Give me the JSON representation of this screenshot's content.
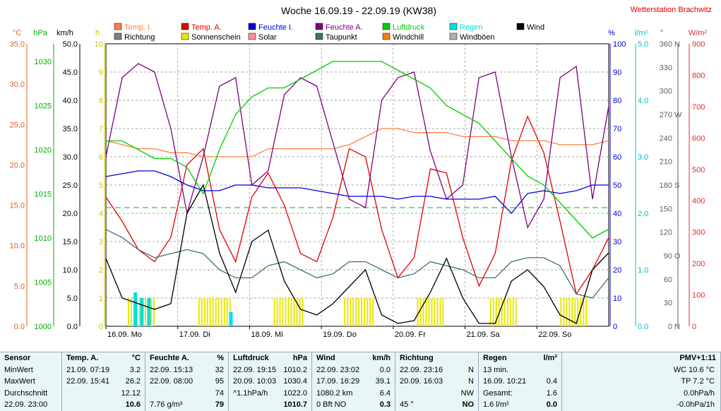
{
  "chart_data": {
    "type": "line",
    "title": "Woche 16.09.19 - 22.09.19 (KW38)",
    "station": "Wetterstation Brachwitz",
    "x_labels": [
      "16.09. Mo",
      "17.09. Di",
      "18.09. Mi",
      "19.09. Do",
      "20.09. Fr",
      "21.09. Sa",
      "22.09. So"
    ],
    "axes": {
      "temp": {
        "label": "°C",
        "ticks": [
          "0.0",
          "5.0",
          "10.0",
          "15.0",
          "20.0",
          "25.0",
          "30.0",
          "35.0"
        ],
        "color": "#e06020"
      },
      "pressure": {
        "label": "hPa",
        "ticks": [
          "1000",
          "1005",
          "1010",
          "1015",
          "1020",
          "1025",
          "1030"
        ],
        "color": "#00b000"
      },
      "wind": {
        "label": "km/h",
        "ticks": [
          "0.0",
          "5.0",
          "10.0",
          "15.0",
          "20.0",
          "25.0",
          "30.0",
          "35.0",
          "40.0",
          "45.0",
          "50.0"
        ],
        "color": "#000000"
      },
      "sun": {
        "label": "h",
        "ticks": [
          "0",
          "1",
          "2",
          "3",
          "4",
          "5",
          "6",
          "7",
          "8",
          "9",
          "10"
        ],
        "color": "#c8c800"
      },
      "humidity": {
        "label": "%",
        "ticks": [
          "0",
          "10",
          "20",
          "30",
          "40",
          "50",
          "60",
          "70",
          "80",
          "90",
          "100"
        ],
        "color": "#0000cc"
      },
      "rain": {
        "label": "l/m²",
        "ticks": [
          "0.0",
          "1.0",
          "2.0",
          "3.0",
          "4.0",
          "5.0"
        ],
        "color": "#00c0c0"
      },
      "direction": {
        "label": "°",
        "ticks": [
          "0",
          "30",
          "60",
          "90",
          "120",
          "150",
          "180",
          "210",
          "240",
          "270",
          "300",
          "330",
          "360"
        ],
        "dir_labels": [
          "N",
          "",
          "",
          "O",
          "",
          "",
          "S",
          "",
          "",
          "W",
          "",
          "",
          "N"
        ],
        "color": "#606060"
      },
      "solar": {
        "label": "W/m²",
        "ticks": [
          "0",
          "100",
          "200",
          "300",
          "400",
          "500",
          "600",
          "700",
          "800",
          "900"
        ],
        "color": "#e03030"
      }
    },
    "legend": [
      {
        "name": "Temp. I.",
        "color": "#ff8040"
      },
      {
        "name": "Temp. A.",
        "color": "#e00000"
      },
      {
        "name": "Feuchte I.",
        "color": "#0000e0"
      },
      {
        "name": "Feuchte A.",
        "color": "#800080"
      },
      {
        "name": "Luftdruck",
        "color": "#00d000"
      },
      {
        "name": "Regen",
        "color": "#00e0e0"
      },
      {
        "name": "Wind",
        "color": "#000000"
      },
      {
        "name": "Richtung",
        "color": "#808080"
      },
      {
        "name": "Sonnenschein",
        "color": "#e8e800"
      },
      {
        "name": "Solar",
        "color": "#ff9090"
      },
      {
        "name": "Taupunkt",
        "color": "#407070"
      },
      {
        "name": "Windchill",
        "color": "#ff8000"
      },
      {
        "name": "Windböen",
        "color": "#b0b0b0"
      }
    ],
    "series": [
      {
        "name": "Temp. A.",
        "axis": "temp",
        "values": [
          16.0,
          13.0,
          9.5,
          8.0,
          11.0,
          20.0,
          22.0,
          12.0,
          8.0,
          16.0,
          19.0,
          15.0,
          9.0,
          8.0,
          13.5,
          22.0,
          21.0,
          12.0,
          6.0,
          8.5,
          19.5,
          19.0,
          11.0,
          5.0,
          9.0,
          20.5,
          26.0,
          21.5,
          13.0,
          4.0,
          7.0,
          11.0
        ]
      },
      {
        "name": "Temp. I.",
        "axis": "temp",
        "values": [
          23.0,
          22.5,
          22.0,
          22.0,
          21.5,
          21.5,
          21.0,
          21.0,
          21.0,
          21.0,
          22.0,
          22.0,
          22.0,
          22.0,
          22.0,
          22.5,
          23.5,
          24.5,
          24.5,
          24.0,
          24.0,
          24.0,
          23.5,
          23.5,
          23.5,
          23.0,
          23.0,
          23.0,
          22.5,
          22.5,
          22.5,
          23.0
        ]
      },
      {
        "name": "Feuchte A.",
        "axis": "humidity",
        "values": [
          60,
          88,
          93,
          90,
          70,
          40,
          60,
          85,
          88,
          50,
          55,
          82,
          88,
          85,
          65,
          45,
          42,
          80,
          88,
          90,
          62,
          45,
          50,
          88,
          90,
          60,
          35,
          45,
          88,
          92,
          45,
          78
        ]
      },
      {
        "name": "Feuchte I.",
        "axis": "humidity",
        "values": [
          53,
          54,
          55,
          55,
          53,
          50,
          48,
          48,
          50,
          50,
          49,
          49,
          49,
          48,
          47,
          46,
          46,
          46,
          45,
          46,
          46,
          45,
          45,
          45,
          46,
          40,
          47,
          48,
          47,
          48,
          50,
          50
        ]
      },
      {
        "name": "Luftdruck",
        "axis": "pressure",
        "values": [
          1021,
          1021,
          1020,
          1019,
          1019,
          1018,
          1015,
          1020,
          1024,
          1026,
          1027,
          1027,
          1028,
          1029,
          1030,
          1030,
          1030,
          1030,
          1029,
          1028,
          1027,
          1025,
          1024,
          1023,
          1021,
          1019,
          1017,
          1016,
          1014,
          1012,
          1010,
          1011
        ]
      },
      {
        "name": "Taupunkt",
        "axis": "temp",
        "values": [
          12.0,
          11.0,
          9.5,
          8.5,
          9.0,
          9.5,
          9.0,
          7.0,
          6.0,
          6.0,
          7.5,
          8.0,
          7.0,
          6.0,
          6.5,
          8.0,
          8.0,
          7.0,
          6.0,
          6.5,
          8.0,
          7.5,
          7.0,
          6.0,
          6.0,
          8.0,
          8.5,
          8.5,
          7.5,
          4.0,
          3.5,
          6.0
        ]
      },
      {
        "name": "Wind",
        "axis": "wind",
        "values": [
          12.0,
          5.0,
          4.0,
          3.0,
          4.0,
          20.0,
          25.0,
          13.0,
          6.0,
          15.0,
          17.0,
          8.0,
          3.0,
          2.0,
          4.0,
          7.0,
          10.0,
          2.0,
          0.5,
          1.0,
          6.0,
          12.0,
          5.0,
          0.5,
          0.5,
          8.0,
          10.0,
          7.0,
          2.0,
          0.5,
          10.0,
          13.0
        ]
      }
    ],
    "sunshine": {
      "axis": "sun",
      "blocks": [
        [
          0.045,
          0.1
        ],
        [
          0.185,
          0.25
        ],
        [
          0.335,
          0.395
        ],
        [
          0.475,
          0.535
        ],
        [
          0.62,
          0.675
        ],
        [
          0.765,
          0.82
        ],
        [
          0.905,
          0.96
        ]
      ],
      "value": 1
    },
    "rain": {
      "axis": "rain",
      "bars": [
        [
          0.055,
          0.6
        ],
        [
          0.068,
          0.5
        ],
        [
          0.082,
          0.5
        ],
        [
          0.245,
          0.25
        ]
      ]
    }
  },
  "table": {
    "columns": [
      {
        "title": "Sensor",
        "unit": "",
        "rows": [
          "MinWert",
          "MaxWert",
          "Durchschnitt",
          "22.09. 23:00"
        ],
        "vals": [
          "",
          "",
          "",
          ""
        ]
      },
      {
        "title": "Temp. A.",
        "unit": "°C",
        "rows": [
          "21.09.  07:19",
          "22.09.  15:41",
          "",
          ""
        ],
        "vals": [
          "3.2",
          "26.2",
          "12.12",
          "10.6"
        ]
      },
      {
        "title": "Feuchte A.",
        "unit": "%",
        "rows": [
          "22.09.  15:13",
          "22.09.  08:00",
          "",
          "7.76 g/m³"
        ],
        "vals": [
          "32",
          "95",
          "74",
          "79"
        ]
      },
      {
        "title": "Luftdruck",
        "unit": "hPa",
        "rows": [
          "22.09.  19:15",
          "20.09.  10:03",
          "^1.1hPa/h",
          ""
        ],
        "vals": [
          "1010.2",
          "1030.4",
          "1022.0",
          "1010.7"
        ]
      },
      {
        "title": "Wind",
        "unit": "km/h",
        "rows": [
          "22.09.  23:02",
          "17.09.  16:29",
          "1080.2 km",
          "0 Bft NO"
        ],
        "vals": [
          "0.0",
          "39.1",
          "6.4",
          "0.3"
        ]
      },
      {
        "title": "Richtung",
        "unit": "",
        "rows": [
          "22.09.  23:16",
          "20.09.  16:03",
          "",
          "45 °"
        ],
        "vals": [
          "N",
          "N",
          "NW",
          "NO"
        ]
      },
      {
        "title": "Regen",
        "unit": "l/m²",
        "rows": [
          "13 min.",
          "16.09.  10:21",
          "Gesamt:",
          "1.6 l/m²"
        ],
        "vals": [
          "",
          "0.4",
          "1.6",
          "0.0"
        ]
      },
      {
        "title": "",
        "unit": "PMV+1:11",
        "rows": [
          "WC 10.6 °C",
          "TP 7.2 °C",
          "0.0hPa/h",
          "-0.0hPa/1h"
        ],
        "vals": [
          "",
          "",
          "",
          ""
        ]
      }
    ]
  }
}
